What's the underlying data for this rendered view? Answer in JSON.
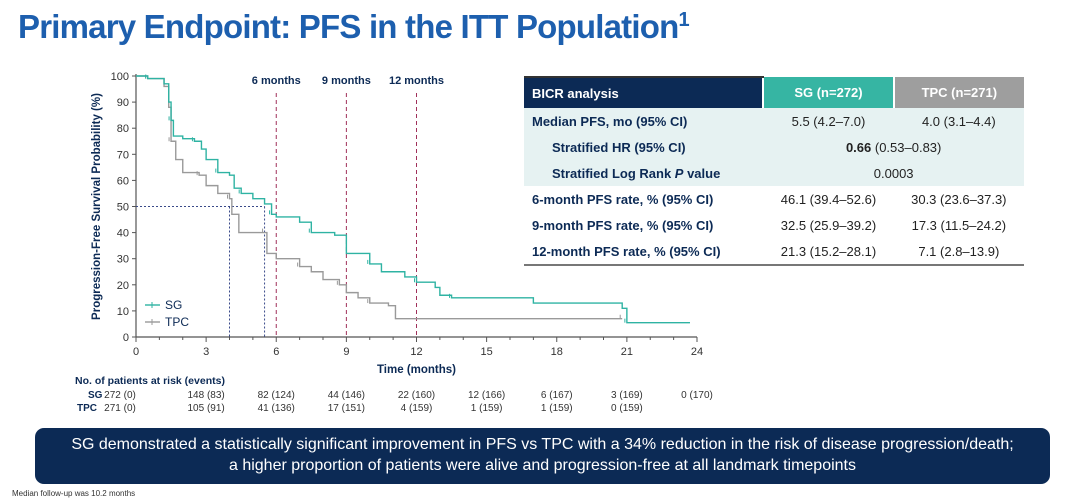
{
  "title": "Primary Endpoint: PFS in the ITT Population",
  "title_ref": "1",
  "chart_data": {
    "type": "line",
    "subtype": "kaplan-meier step",
    "xlabel": "Time (months)",
    "ylabel": "Progression-Free Survival Probability (%)",
    "xlim": [
      0,
      24
    ],
    "ylim": [
      0,
      100
    ],
    "xticks": [
      0,
      3,
      6,
      9,
      12,
      15,
      18,
      21,
      24
    ],
    "yticks": [
      0,
      10,
      20,
      30,
      40,
      50,
      60,
      70,
      80,
      90,
      100
    ],
    "landmarks": [
      {
        "x": 6,
        "label": "6 months"
      },
      {
        "x": 9,
        "label": "9 months"
      },
      {
        "x": 12,
        "label": "12 months"
      }
    ],
    "median_lines": {
      "y": 50,
      "x": [
        4.0,
        5.5
      ]
    },
    "legend": "bottom-left",
    "series": [
      {
        "name": "SG",
        "color": "#2fb3a3",
        "points": [
          [
            0,
            100
          ],
          [
            0.5,
            99
          ],
          [
            1.2,
            97
          ],
          [
            1.4,
            90
          ],
          [
            1.5,
            83
          ],
          [
            1.6,
            77
          ],
          [
            2,
            76
          ],
          [
            2.5,
            75
          ],
          [
            2.8,
            72
          ],
          [
            3,
            68
          ],
          [
            3.5,
            63
          ],
          [
            4,
            62
          ],
          [
            4.2,
            57
          ],
          [
            4.5,
            55
          ],
          [
            5,
            53
          ],
          [
            5.5,
            51
          ],
          [
            5.8,
            47
          ],
          [
            6,
            46
          ],
          [
            7,
            44
          ],
          [
            7.5,
            40
          ],
          [
            8.5,
            39
          ],
          [
            9,
            32
          ],
          [
            10,
            28
          ],
          [
            10.5,
            25
          ],
          [
            11.5,
            23
          ],
          [
            12,
            21
          ],
          [
            12.8,
            19
          ],
          [
            13,
            16
          ],
          [
            13.5,
            15
          ],
          [
            17,
            13
          ],
          [
            20.8,
            11
          ],
          [
            21,
            5.5
          ],
          [
            23.7,
            5.5
          ]
        ]
      },
      {
        "name": "TPC",
        "color": "#9a9a9a",
        "points": [
          [
            0,
            100
          ],
          [
            0.5,
            99
          ],
          [
            1.2,
            96
          ],
          [
            1.4,
            88
          ],
          [
            1.5,
            75
          ],
          [
            1.7,
            68
          ],
          [
            2,
            63
          ],
          [
            2.7,
            62
          ],
          [
            3,
            58
          ],
          [
            3.5,
            55
          ],
          [
            4,
            53
          ],
          [
            4.1,
            47
          ],
          [
            4.4,
            40
          ],
          [
            5.5,
            40
          ],
          [
            5.6,
            32
          ],
          [
            6,
            30
          ],
          [
            7,
            27
          ],
          [
            7.5,
            25
          ],
          [
            8,
            22
          ],
          [
            8.7,
            20
          ],
          [
            9,
            17
          ],
          [
            9.5,
            15
          ],
          [
            10,
            13
          ],
          [
            10.8,
            12
          ],
          [
            11.1,
            7
          ],
          [
            20.8,
            7
          ]
        ]
      }
    ]
  },
  "colors": {
    "navy": "#0c2a55",
    "sg": "#2fb3a3",
    "tpc": "#9a9a9a",
    "landmark": "#a0305a"
  },
  "table": {
    "headers": [
      "BICR analysis",
      "SG (n=272)",
      "TPC (n=271)"
    ],
    "median": {
      "label": "Median PFS, mo (95% CI)",
      "sg": "5.5 (4.2–7.0)",
      "tpc": "4.0 (3.1–4.4)"
    },
    "hr": {
      "label": "Stratified HR (95% CI)",
      "value_bold": "0.66",
      "value_ci": " (0.53–0.83)"
    },
    "p": {
      "label_a": "Stratified Log Rank ",
      "label_p": "P",
      "label_b": " value",
      "value": "0.0003"
    },
    "rates": [
      {
        "label": "6-month PFS rate, % (95% CI)",
        "sg": "46.1 (39.4–52.6)",
        "tpc": "30.3 (23.6–37.3)"
      },
      {
        "label": "9-month PFS rate, % (95% CI)",
        "sg": "32.5 (25.9–39.2)",
        "tpc": "17.3 (11.5–24.2)"
      },
      {
        "label": "12-month PFS rate, % (95% CI)",
        "sg": "21.3 (15.2–28.1)",
        "tpc": "7.1 (2.8–13.9)"
      }
    ]
  },
  "risk": {
    "header": "No. of patients at risk (events)",
    "rows": [
      {
        "name": "SG",
        "values": [
          "272 (0)",
          "148 (83)",
          "82 (124)",
          "44 (146)",
          "22 (160)",
          "12 (166)",
          "6 (167)",
          "3 (169)",
          "0 (170)"
        ]
      },
      {
        "name": "TPC",
        "values": [
          "271 (0)",
          "105 (91)",
          "41 (136)",
          "17 (151)",
          "4 (159)",
          "1 (159)",
          "1 (159)",
          "0 (159)"
        ]
      }
    ]
  },
  "banner": {
    "line1": "SG demonstrated a statistically significant improvement in PFS vs TPC with a 34% reduction in the risk of disease progression/death;",
    "line2": "a higher proportion of patients were alive and progression-free at all landmark timepoints"
  },
  "footnote": "Median follow-up was 10.2 months"
}
